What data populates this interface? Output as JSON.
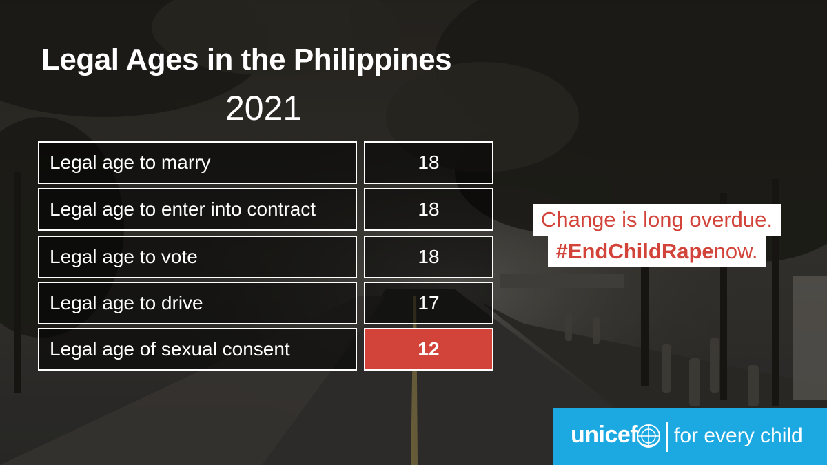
{
  "title": "Legal Ages in the Philippines",
  "year": "2021",
  "rows": [
    {
      "label": "Legal age to marry",
      "value": "18"
    },
    {
      "label": "Legal age to enter into contract",
      "value": "18"
    },
    {
      "label": "Legal age to vote",
      "value": "18"
    },
    {
      "label": "Legal age to drive",
      "value": "17"
    },
    {
      "label": "Legal age of sexual consent",
      "value": "12"
    }
  ],
  "callout": {
    "line1": "Change is long overdue.",
    "hashtag": "#EndChildRape",
    "line2_suffix": " now."
  },
  "brand": {
    "name": "unicef",
    "tagline": "for every child",
    "logo_icon": "un-globe-icon"
  },
  "colors": {
    "accent_red": "#d2443a",
    "unicef_blue": "#1ca9e1"
  }
}
